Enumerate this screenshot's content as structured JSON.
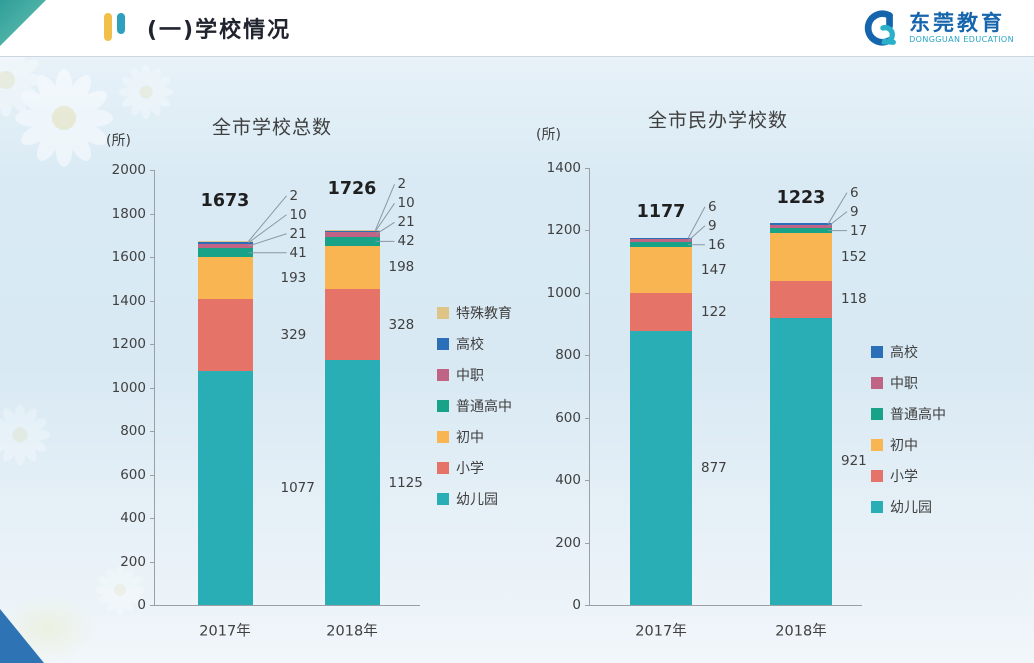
{
  "header": {
    "title": "(一)学校情况",
    "logo": {
      "name": "东莞教育",
      "subtitle": "DONGGUAN EDUCATION"
    },
    "accent_colors": {
      "logo_blue": "#1565ad",
      "logo_teal": "#26a5c4",
      "marker_yellow": "#f2c04a",
      "marker_blue": "#2f9fbe",
      "corner_teal": "#3aa49e",
      "corner_blue": "#2e74b5"
    }
  },
  "chart_data": [
    {
      "type": "bar",
      "stacked": true,
      "title": "全市学校总数",
      "unit_label": "(所)",
      "categories": [
        "2017年",
        "2018年"
      ],
      "series": [
        {
          "name": "幼儿园",
          "color": "#29aeb6",
          "values": [
            1077,
            1125
          ]
        },
        {
          "name": "小学",
          "color": "#e57368",
          "values": [
            329,
            328
          ]
        },
        {
          "name": "初中",
          "color": "#f9b551",
          "values": [
            193,
            198
          ]
        },
        {
          "name": "普通高中",
          "color": "#18a288",
          "values": [
            41,
            42
          ]
        },
        {
          "name": "中职",
          "color": "#bf6484",
          "values": [
            21,
            21
          ]
        },
        {
          "name": "高校",
          "color": "#2a6fb7",
          "values": [
            10,
            10
          ]
        },
        {
          "name": "特殊教育",
          "color": "#dfc488",
          "values": [
            2,
            2
          ]
        }
      ],
      "totals": [
        1673,
        1726
      ],
      "ylim": [
        0,
        2000
      ],
      "ytick_step": 200,
      "grid": false,
      "legend_position": "right",
      "legend_order": [
        "特殊教育",
        "高校",
        "中职",
        "普通高中",
        "初中",
        "小学",
        "幼儿园"
      ]
    },
    {
      "type": "bar",
      "stacked": true,
      "title": "全市民办学校数",
      "unit_label": "(所)",
      "categories": [
        "2017年",
        "2018年"
      ],
      "series": [
        {
          "name": "幼儿园",
          "color": "#29aeb6",
          "values": [
            877,
            921
          ]
        },
        {
          "name": "小学",
          "color": "#e57368",
          "values": [
            122,
            118
          ]
        },
        {
          "name": "初中",
          "color": "#f9b551",
          "values": [
            147,
            152
          ]
        },
        {
          "name": "普通高中",
          "color": "#18a288",
          "values": [
            16,
            17
          ]
        },
        {
          "name": "中职",
          "color": "#bf6484",
          "values": [
            9,
            9
          ]
        },
        {
          "name": "高校",
          "color": "#2a6fb7",
          "values": [
            6,
            6
          ]
        }
      ],
      "totals": [
        1177,
        1223
      ],
      "ylim": [
        0,
        1400
      ],
      "ytick_step": 200,
      "grid": false,
      "legend_position": "right",
      "legend_order": [
        "高校",
        "中职",
        "普通高中",
        "初中",
        "小学",
        "幼儿园"
      ]
    }
  ]
}
